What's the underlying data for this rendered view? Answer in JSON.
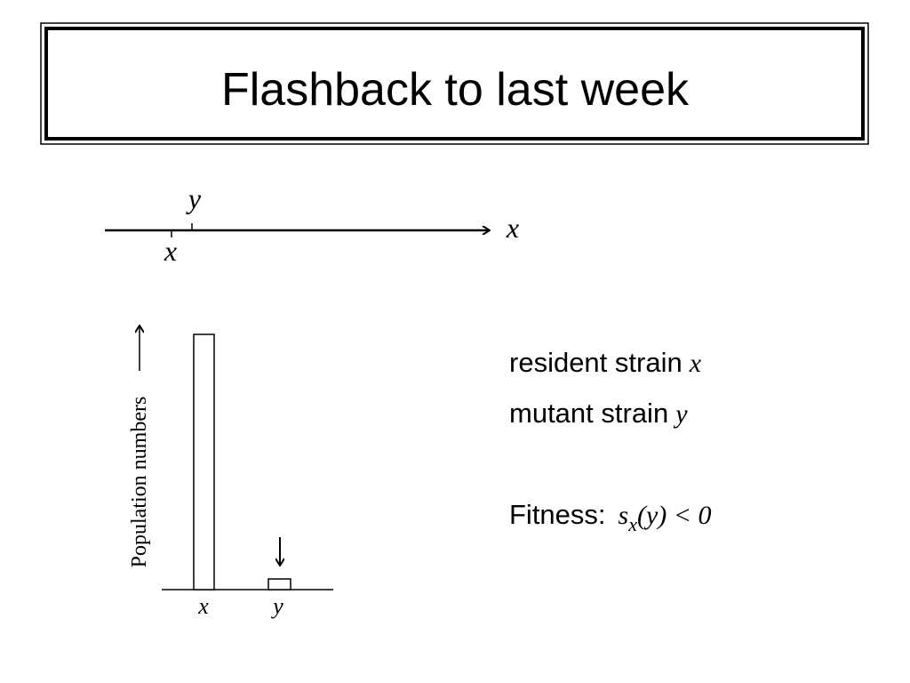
{
  "title": "Flashback to last week",
  "trait_axis": {
    "tick_above": "y",
    "tick_below": "x",
    "axis_label": "x"
  },
  "bar_diagram": {
    "y_axis_label": "Population numbers",
    "categories": [
      "x",
      "y"
    ]
  },
  "legend": {
    "resident": {
      "text": "resident strain",
      "symbol": "x"
    },
    "mutant": {
      "text": "mutant strain",
      "symbol": "y"
    }
  },
  "fitness": {
    "label": "Fitness:",
    "function": "s",
    "subscript": "x",
    "rest": "(y) < 0"
  }
}
